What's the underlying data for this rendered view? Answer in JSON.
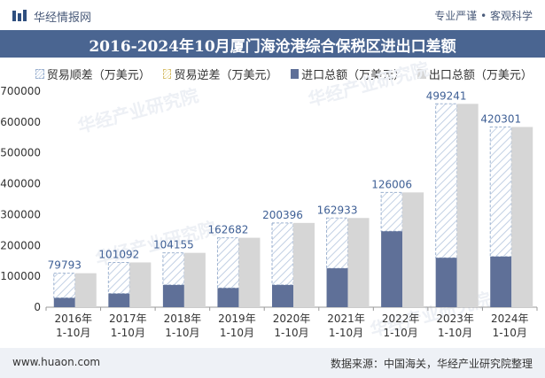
{
  "header": {
    "brand": "华经情报网",
    "tagline": "专业严谨 • 客观科学"
  },
  "title": "2016-2024年10月厦门海沧港综合保税区进出口差额",
  "legend": {
    "deficit": "贸易顺差（万美元）",
    "surplus": "贸易逆差（万美元）",
    "import": "进口总额（万美元）",
    "export": "出口总额（万美元）"
  },
  "footer": {
    "left": "www.huaon.com",
    "right": "数据来源：中国海关，华经产业研究院整理"
  },
  "colors": {
    "title_band": "#4a6591",
    "import": "#5f7098",
    "export": "#d6d6d6",
    "deficit_hatch": "#9db2d0",
    "surplus_hatch": "#d8c070"
  },
  "watermark": "华经产业研究院",
  "chart_data": {
    "type": "bar",
    "categories": [
      [
        "2016年",
        "1-10月"
      ],
      [
        "2017年",
        "1-10月"
      ],
      [
        "2018年",
        "1-10月"
      ],
      [
        "2019年",
        "1-10月"
      ],
      [
        "2020年",
        "1-10月"
      ],
      [
        "2021年",
        "1-10月"
      ],
      [
        "2022年",
        "1-10月"
      ],
      [
        "2023年",
        "1-10月"
      ],
      [
        "2024年",
        "1-10月"
      ]
    ],
    "series": [
      {
        "name": "进口总额（万美元）",
        "values": [
          30000,
          44000,
          72000,
          62000,
          72000,
          126000,
          246000,
          160000,
          164000
        ]
      },
      {
        "name": "出口总额（万美元）",
        "values": [
          110000,
          145000,
          176000,
          225000,
          273000,
          289000,
          372000,
          659000,
          584000
        ]
      },
      {
        "name": "贸易顺差（万美元）",
        "values": [
          79793,
          101092,
          104155,
          162682,
          200396,
          162933,
          126006,
          499241,
          420301
        ]
      }
    ],
    "balance_labels": [
      "79793",
      "101092",
      "104155",
      "162682",
      "200396",
      "162933",
      "126006",
      "499241",
      "420301"
    ],
    "yticks": [
      0,
      100000,
      200000,
      300000,
      400000,
      500000,
      600000,
      700000
    ],
    "ylim": [
      0,
      700000
    ]
  }
}
